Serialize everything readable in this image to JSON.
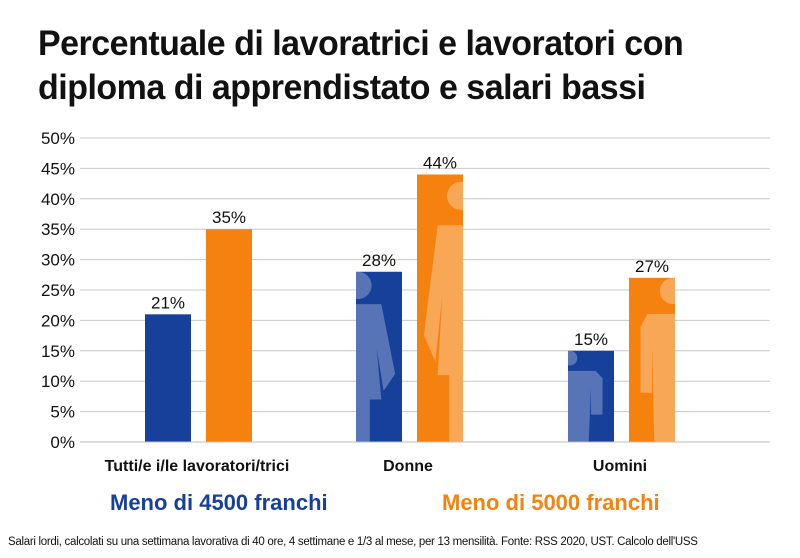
{
  "chart_data": {
    "type": "bar",
    "title": "Percentuale di lavoratrici e lavoratori con diploma di apprendistato e salari bassi",
    "categories": [
      "Tutti/e i/le lavoratori/trici",
      "Donne",
      "Uomini"
    ],
    "series": [
      {
        "name": "Meno di 4500 franchi",
        "color": "#17409a",
        "values": [
          21,
          28,
          15
        ]
      },
      {
        "name": "Meno di 5000 franchi",
        "color": "#f5820f",
        "values": [
          35,
          44,
          27
        ]
      }
    ],
    "value_labels": [
      [
        "21%",
        "28%",
        "15%"
      ],
      [
        "35%",
        "44%",
        "27%"
      ]
    ],
    "ylim": [
      0,
      50
    ],
    "yticks": [
      "0%",
      "5%",
      "10%",
      "15%",
      "20%",
      "25%",
      "30%",
      "35%",
      "40%",
      "45%",
      "50%"
    ],
    "grid": true,
    "legend": "bottom",
    "icons": [
      "",
      "woman-icon",
      "man-icon"
    ]
  },
  "footnote": "Salari lordi, calcolati su una settimana lavorativa di 40 ore, 4 settimane e 1/3 al mese, per 13 mensilità. Fonte: RSS 2020, UST. Calcolo dell'USS"
}
